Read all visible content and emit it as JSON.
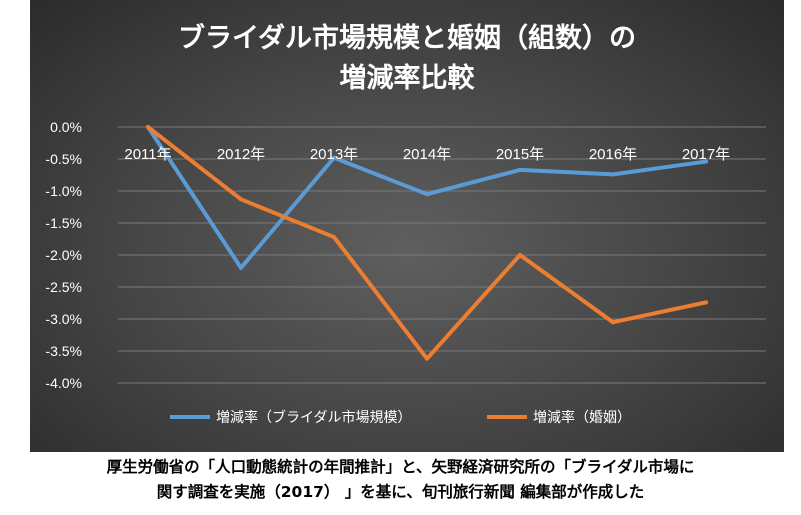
{
  "caption": {
    "line1": "厚生労働省の「人口動態統計の年間推計」と、矢野経済研究所の「ブライダル市場に",
    "line2": "関す調査を実施（2017） 」を基に、旬刊旅行新聞 編集部が作成した"
  },
  "colors": {
    "series1": "#5b9bd5",
    "series2": "#ed7d31",
    "grid": "#7a7a7a"
  },
  "chart_data": {
    "type": "line",
    "title_lines": [
      "ブライダル市場規模と婚姻（組数）の",
      "増減率比較"
    ],
    "categories": [
      "2011年",
      "2012年",
      "2013年",
      "2014年",
      "2015年",
      "2016年",
      "2017年"
    ],
    "series": [
      {
        "name": "増減率（ブライダル市場規模）",
        "values": [
          0.0,
          -2.2,
          -0.48,
          -1.05,
          -0.67,
          -0.74,
          -0.54
        ]
      },
      {
        "name": "増減率（婚姻）",
        "values": [
          0.0,
          -1.13,
          -1.72,
          -3.62,
          -2.0,
          -3.05,
          -2.74
        ]
      }
    ],
    "y_ticks": [
      "0.0%",
      "-0.5%",
      "-1.0%",
      "-1.5%",
      "-2.0%",
      "-2.5%",
      "-3.0%",
      "-3.5%",
      "-4.0%"
    ],
    "ylim": [
      -4.0,
      0.0
    ],
    "grid": true,
    "legend_position": "bottom"
  }
}
